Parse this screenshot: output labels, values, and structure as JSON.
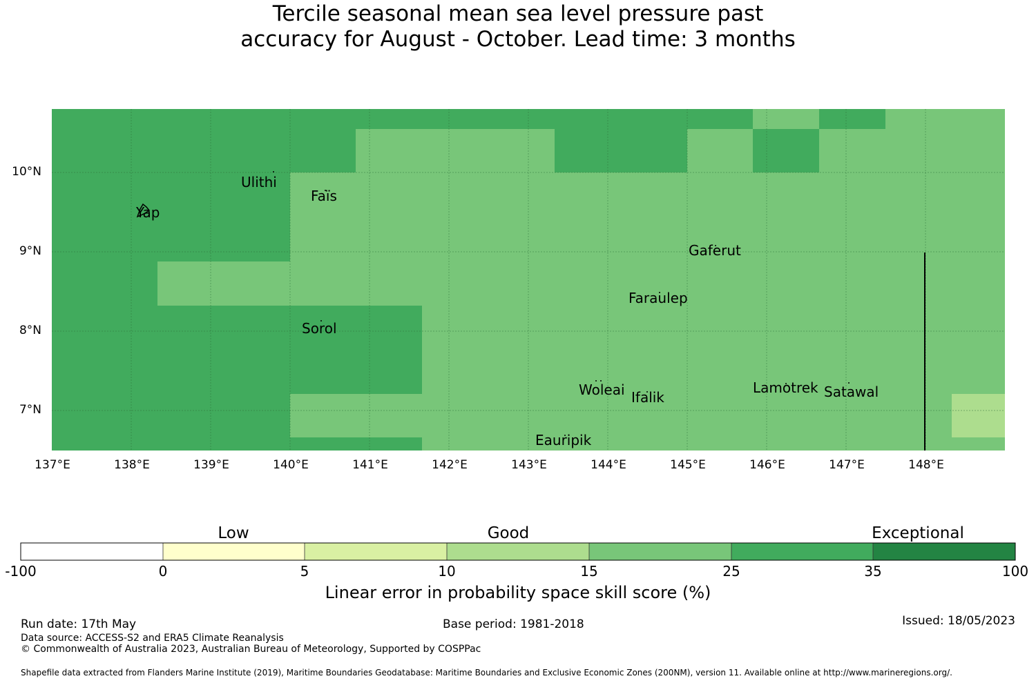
{
  "title": {
    "line1": "Tercile seasonal mean sea level pressure past",
    "line2": "accuracy for August - October. Lead time: 3 months"
  },
  "map": {
    "lon_range": [
      137,
      149
    ],
    "lat_range": [
      6.5,
      10.8
    ],
    "lat_ticks": [
      "10°N",
      "9°N",
      "8°N",
      "7°N"
    ],
    "lon_ticks": [
      "137°E",
      "138°E",
      "139°E",
      "140°E",
      "141°E",
      "142°E",
      "143°E",
      "144°E",
      "145°E",
      "146°E",
      "147°E",
      "148°E"
    ],
    "colors": {
      "bin_25_35": "#41ab5d",
      "bin_15_25": "#78c679",
      "bin_10_15": "#addd8e"
    },
    "islands": [
      "Ulithi",
      "Faïs",
      "Yap",
      "Gaferut",
      "Faraulep",
      "Sorol",
      "Woleai",
      "Ifalik",
      "Lamotrek",
      "Satawal",
      "Eauripik"
    ]
  },
  "colorbar": {
    "categories": [
      "Low",
      "Good",
      "Exceptional"
    ],
    "tick_labels": [
      "-100",
      "0",
      "5",
      "10",
      "15",
      "25",
      "35",
      "100"
    ],
    "colors": [
      "#ffffff",
      "#ffffcc",
      "#d9f0a3",
      "#addd8e",
      "#78c679",
      "#41ab5d",
      "#238443"
    ],
    "title": "Linear error in probability space skill score (%)"
  },
  "footer": {
    "run_date": "Run date: 17th May",
    "base_period": "Base period: 1981-2018",
    "issued": "Issued: 18/05/2023",
    "data_source": "Data source: ACCESS-S2 and ERA5 Climate Reanalysis",
    "copyright": "© Commonwealth of Australia 2023, Australian Bureau of Meteorology, Supported by COSPPac",
    "shapefile": "Shapefile data extracted from Flanders Marine Institute (2019), Maritime Boundaries Geodatabase: Maritime Boundaries and Exclusive Economic Zones (200NM), version 11. Available online at http://www.marineregions.org/."
  }
}
